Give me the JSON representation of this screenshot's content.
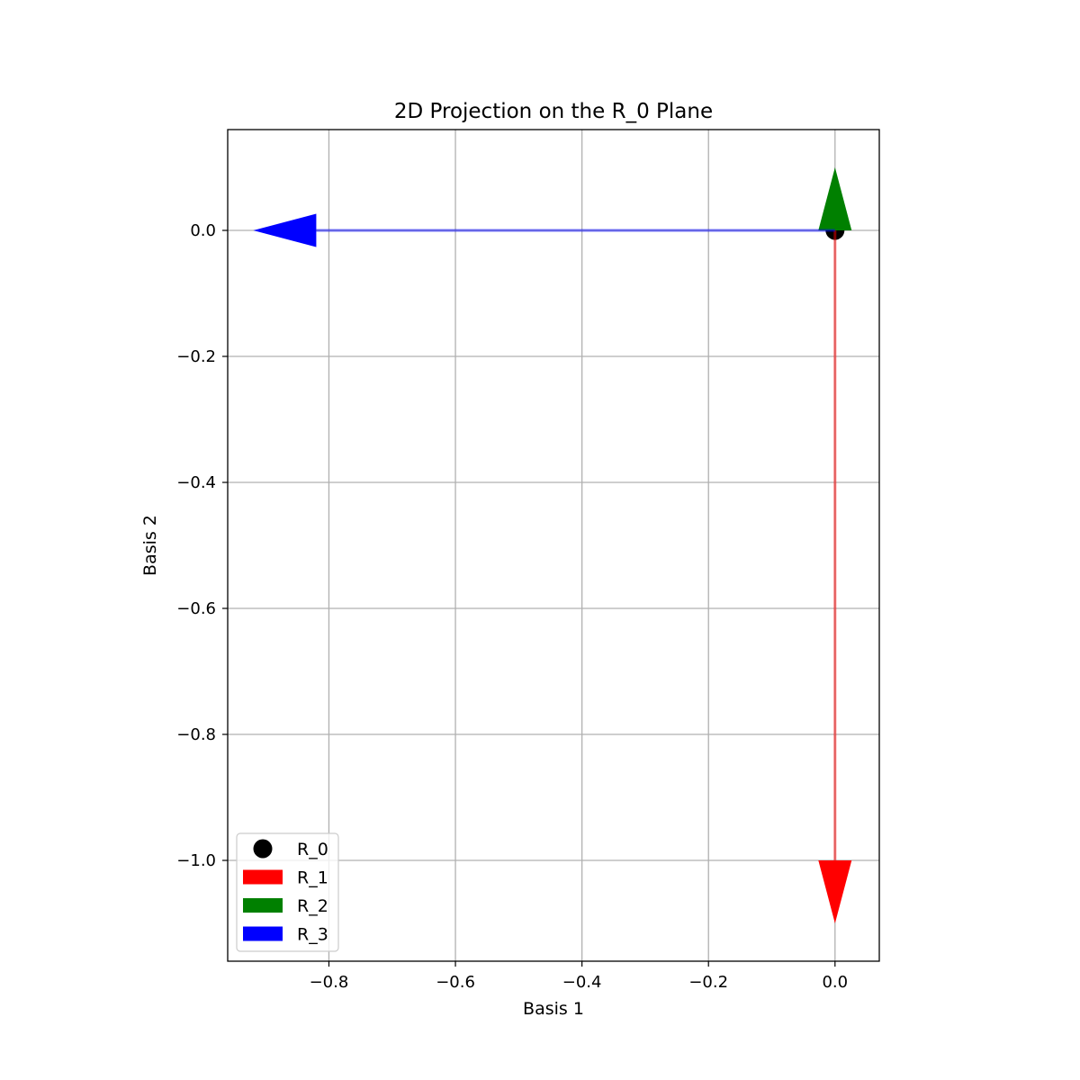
{
  "chart_data": {
    "type": "quiver",
    "title": "2D Projection on the R_0 Plane",
    "xlabel": "Basis 1",
    "ylabel": "Basis 2",
    "xlim": [
      -0.96,
      0.07
    ],
    "ylim": [
      -1.16,
      0.16
    ],
    "xticks": [
      -0.8,
      -0.6,
      -0.4,
      -0.2,
      0.0
    ],
    "xtick_labels": [
      "−0.8",
      "−0.6",
      "−0.4",
      "−0.2",
      "0.0"
    ],
    "yticks": [
      0.0,
      -0.2,
      -0.4,
      -0.6,
      -0.8,
      -1.0
    ],
    "ytick_labels": [
      "0.0",
      "−0.2",
      "−0.4",
      "−0.6",
      "−0.8",
      "−1.0"
    ],
    "grid": true,
    "legend_position": "lower-left",
    "point": {
      "name": "R_0",
      "x": 0.0,
      "y": 0.0,
      "color": "#000000"
    },
    "vectors": [
      {
        "name": "R_1",
        "x0": 0.0,
        "y0": 0.0,
        "dx": 0.0,
        "dy": -1.0,
        "color": "#ff0000"
      },
      {
        "name": "R_2",
        "x0": 0.0,
        "y0": 0.0,
        "dx": 0.0,
        "dy": 0.0,
        "color": "#008000"
      },
      {
        "name": "R_3",
        "x0": 0.0,
        "y0": 0.0,
        "dx": -0.82,
        "dy": 0.0,
        "color": "#0000ff"
      }
    ]
  }
}
